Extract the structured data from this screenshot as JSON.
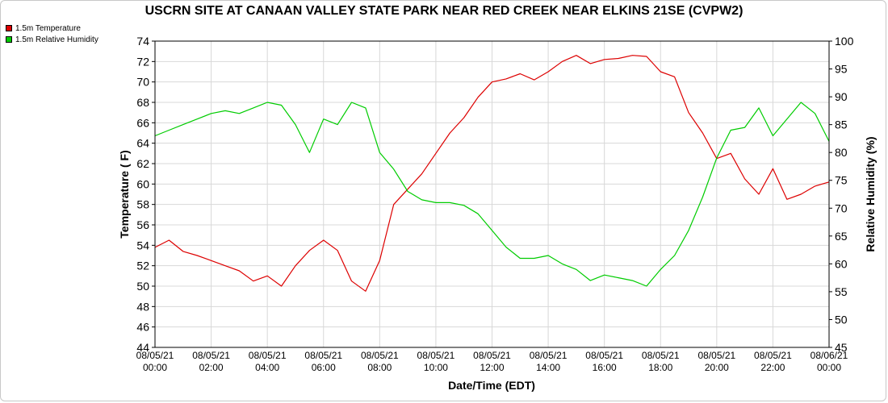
{
  "chart_data": {
    "type": "line",
    "title": "USCRN SITE AT CANAAN VALLEY STATE PARK NEAR RED CREEK NEAR ELKINS 21SE (CVPW2)",
    "xlabel": "Date/Time (EDT)",
    "ylabel_left": "Temperature ( F)",
    "ylabel_right": "Relative Humidity (%)",
    "ylim_left": [
      44,
      74
    ],
    "ylim_right": [
      45,
      100
    ],
    "y_ticks_left": [
      "44",
      "46",
      "48",
      "50",
      "52",
      "54",
      "56",
      "58",
      "60",
      "62",
      "64",
      "66",
      "68",
      "70",
      "72",
      "74"
    ],
    "y_ticks_right": [
      "45",
      "50",
      "55",
      "60",
      "65",
      "70",
      "75",
      "80",
      "85",
      "90",
      "95",
      "100"
    ],
    "x_ticks": [
      {
        "date": "08/05/21",
        "time": "00:00"
      },
      {
        "date": "08/05/21",
        "time": "02:00"
      },
      {
        "date": "08/05/21",
        "time": "04:00"
      },
      {
        "date": "08/05/21",
        "time": "06:00"
      },
      {
        "date": "08/05/21",
        "time": "08:00"
      },
      {
        "date": "08/05/21",
        "time": "10:00"
      },
      {
        "date": "08/05/21",
        "time": "12:00"
      },
      {
        "date": "08/05/21",
        "time": "14:00"
      },
      {
        "date": "08/05/21",
        "time": "16:00"
      },
      {
        "date": "08/05/21",
        "time": "18:00"
      },
      {
        "date": "08/05/21",
        "time": "20:00"
      },
      {
        "date": "08/05/21",
        "time": "22:00"
      },
      {
        "date": "08/06/21",
        "time": "00:00"
      }
    ],
    "grid": true,
    "legend_position": "top-left",
    "series": [
      {
        "name": "1.5m Temperature",
        "axis": "left",
        "color": "#dd0000",
        "x": [
          "08/05/21 00:00",
          "08/05/21 00:30",
          "08/05/21 01:00",
          "08/05/21 01:30",
          "08/05/21 02:00",
          "08/05/21 02:30",
          "08/05/21 03:00",
          "08/05/21 03:30",
          "08/05/21 04:00",
          "08/05/21 04:30",
          "08/05/21 05:00",
          "08/05/21 05:30",
          "08/05/21 06:00",
          "08/05/21 06:30",
          "08/05/21 07:00",
          "08/05/21 07:30",
          "08/05/21 08:00",
          "08/05/21 08:30",
          "08/05/21 09:00",
          "08/05/21 09:30",
          "08/05/21 10:00",
          "08/05/21 10:30",
          "08/05/21 11:00",
          "08/05/21 11:30",
          "08/05/21 12:00",
          "08/05/21 12:30",
          "08/05/21 13:00",
          "08/05/21 13:30",
          "08/05/21 14:00",
          "08/05/21 14:30",
          "08/05/21 15:00",
          "08/05/21 15:30",
          "08/05/21 16:00",
          "08/05/21 16:30",
          "08/05/21 17:00",
          "08/05/21 17:30",
          "08/05/21 18:00",
          "08/05/21 18:30",
          "08/05/21 19:00",
          "08/05/21 19:30",
          "08/05/21 20:00",
          "08/05/21 20:30",
          "08/05/21 21:00",
          "08/05/21 21:30",
          "08/05/21 22:00",
          "08/05/21 22:30",
          "08/05/21 23:00",
          "08/05/21 23:30",
          "08/06/21 00:00"
        ],
        "values": [
          53.8,
          54.5,
          53.4,
          53.0,
          52.5,
          52.0,
          51.5,
          50.5,
          51.0,
          50.0,
          52.0,
          53.5,
          54.5,
          53.5,
          50.5,
          49.5,
          52.5,
          58.0,
          59.5,
          61.0,
          63.0,
          65.0,
          66.5,
          68.5,
          70.0,
          70.3,
          70.8,
          70.2,
          71.0,
          72.0,
          72.6,
          71.8,
          72.2,
          72.3,
          72.6,
          72.5,
          71.0,
          70.5,
          67.0,
          65.0,
          62.5,
          63.0,
          60.5,
          59.0,
          61.5,
          58.5,
          59.0,
          59.8,
          60.2
        ]
      },
      {
        "name": "1.5m Relative Humidity",
        "axis": "right",
        "color": "#00cc00",
        "x": [
          "08/05/21 00:00",
          "08/05/21 00:30",
          "08/05/21 01:00",
          "08/05/21 01:30",
          "08/05/21 02:00",
          "08/05/21 02:30",
          "08/05/21 03:00",
          "08/05/21 03:30",
          "08/05/21 04:00",
          "08/05/21 04:30",
          "08/05/21 05:00",
          "08/05/21 05:30",
          "08/05/21 06:00",
          "08/05/21 06:30",
          "08/05/21 07:00",
          "08/05/21 07:30",
          "08/05/21 08:00",
          "08/05/21 08:30",
          "08/05/21 09:00",
          "08/05/21 09:30",
          "08/05/21 10:00",
          "08/05/21 10:30",
          "08/05/21 11:00",
          "08/05/21 11:30",
          "08/05/21 12:00",
          "08/05/21 12:30",
          "08/05/21 13:00",
          "08/05/21 13:30",
          "08/05/21 14:00",
          "08/05/21 14:30",
          "08/05/21 15:00",
          "08/05/21 15:30",
          "08/05/21 16:00",
          "08/05/21 16:30",
          "08/05/21 17:00",
          "08/05/21 17:30",
          "08/05/21 18:00",
          "08/05/21 18:30",
          "08/05/21 19:00",
          "08/05/21 19:30",
          "08/05/21 20:00",
          "08/05/21 20:30",
          "08/05/21 21:00",
          "08/05/21 21:30",
          "08/05/21 22:00",
          "08/05/21 22:30",
          "08/05/21 23:00",
          "08/05/21 23:30",
          "08/06/21 00:00"
        ],
        "values": [
          83,
          84,
          85,
          86,
          87,
          87.5,
          87,
          88,
          89,
          88.5,
          85,
          80,
          86,
          85,
          89,
          88,
          80,
          77,
          73,
          71.5,
          71,
          71,
          70.5,
          69,
          66,
          63,
          61,
          61,
          61.5,
          60,
          59,
          57,
          58,
          57.5,
          57,
          56,
          59,
          61.5,
          66,
          72,
          79,
          84,
          84.5,
          88,
          83,
          86,
          89,
          87,
          82
        ]
      }
    ]
  }
}
